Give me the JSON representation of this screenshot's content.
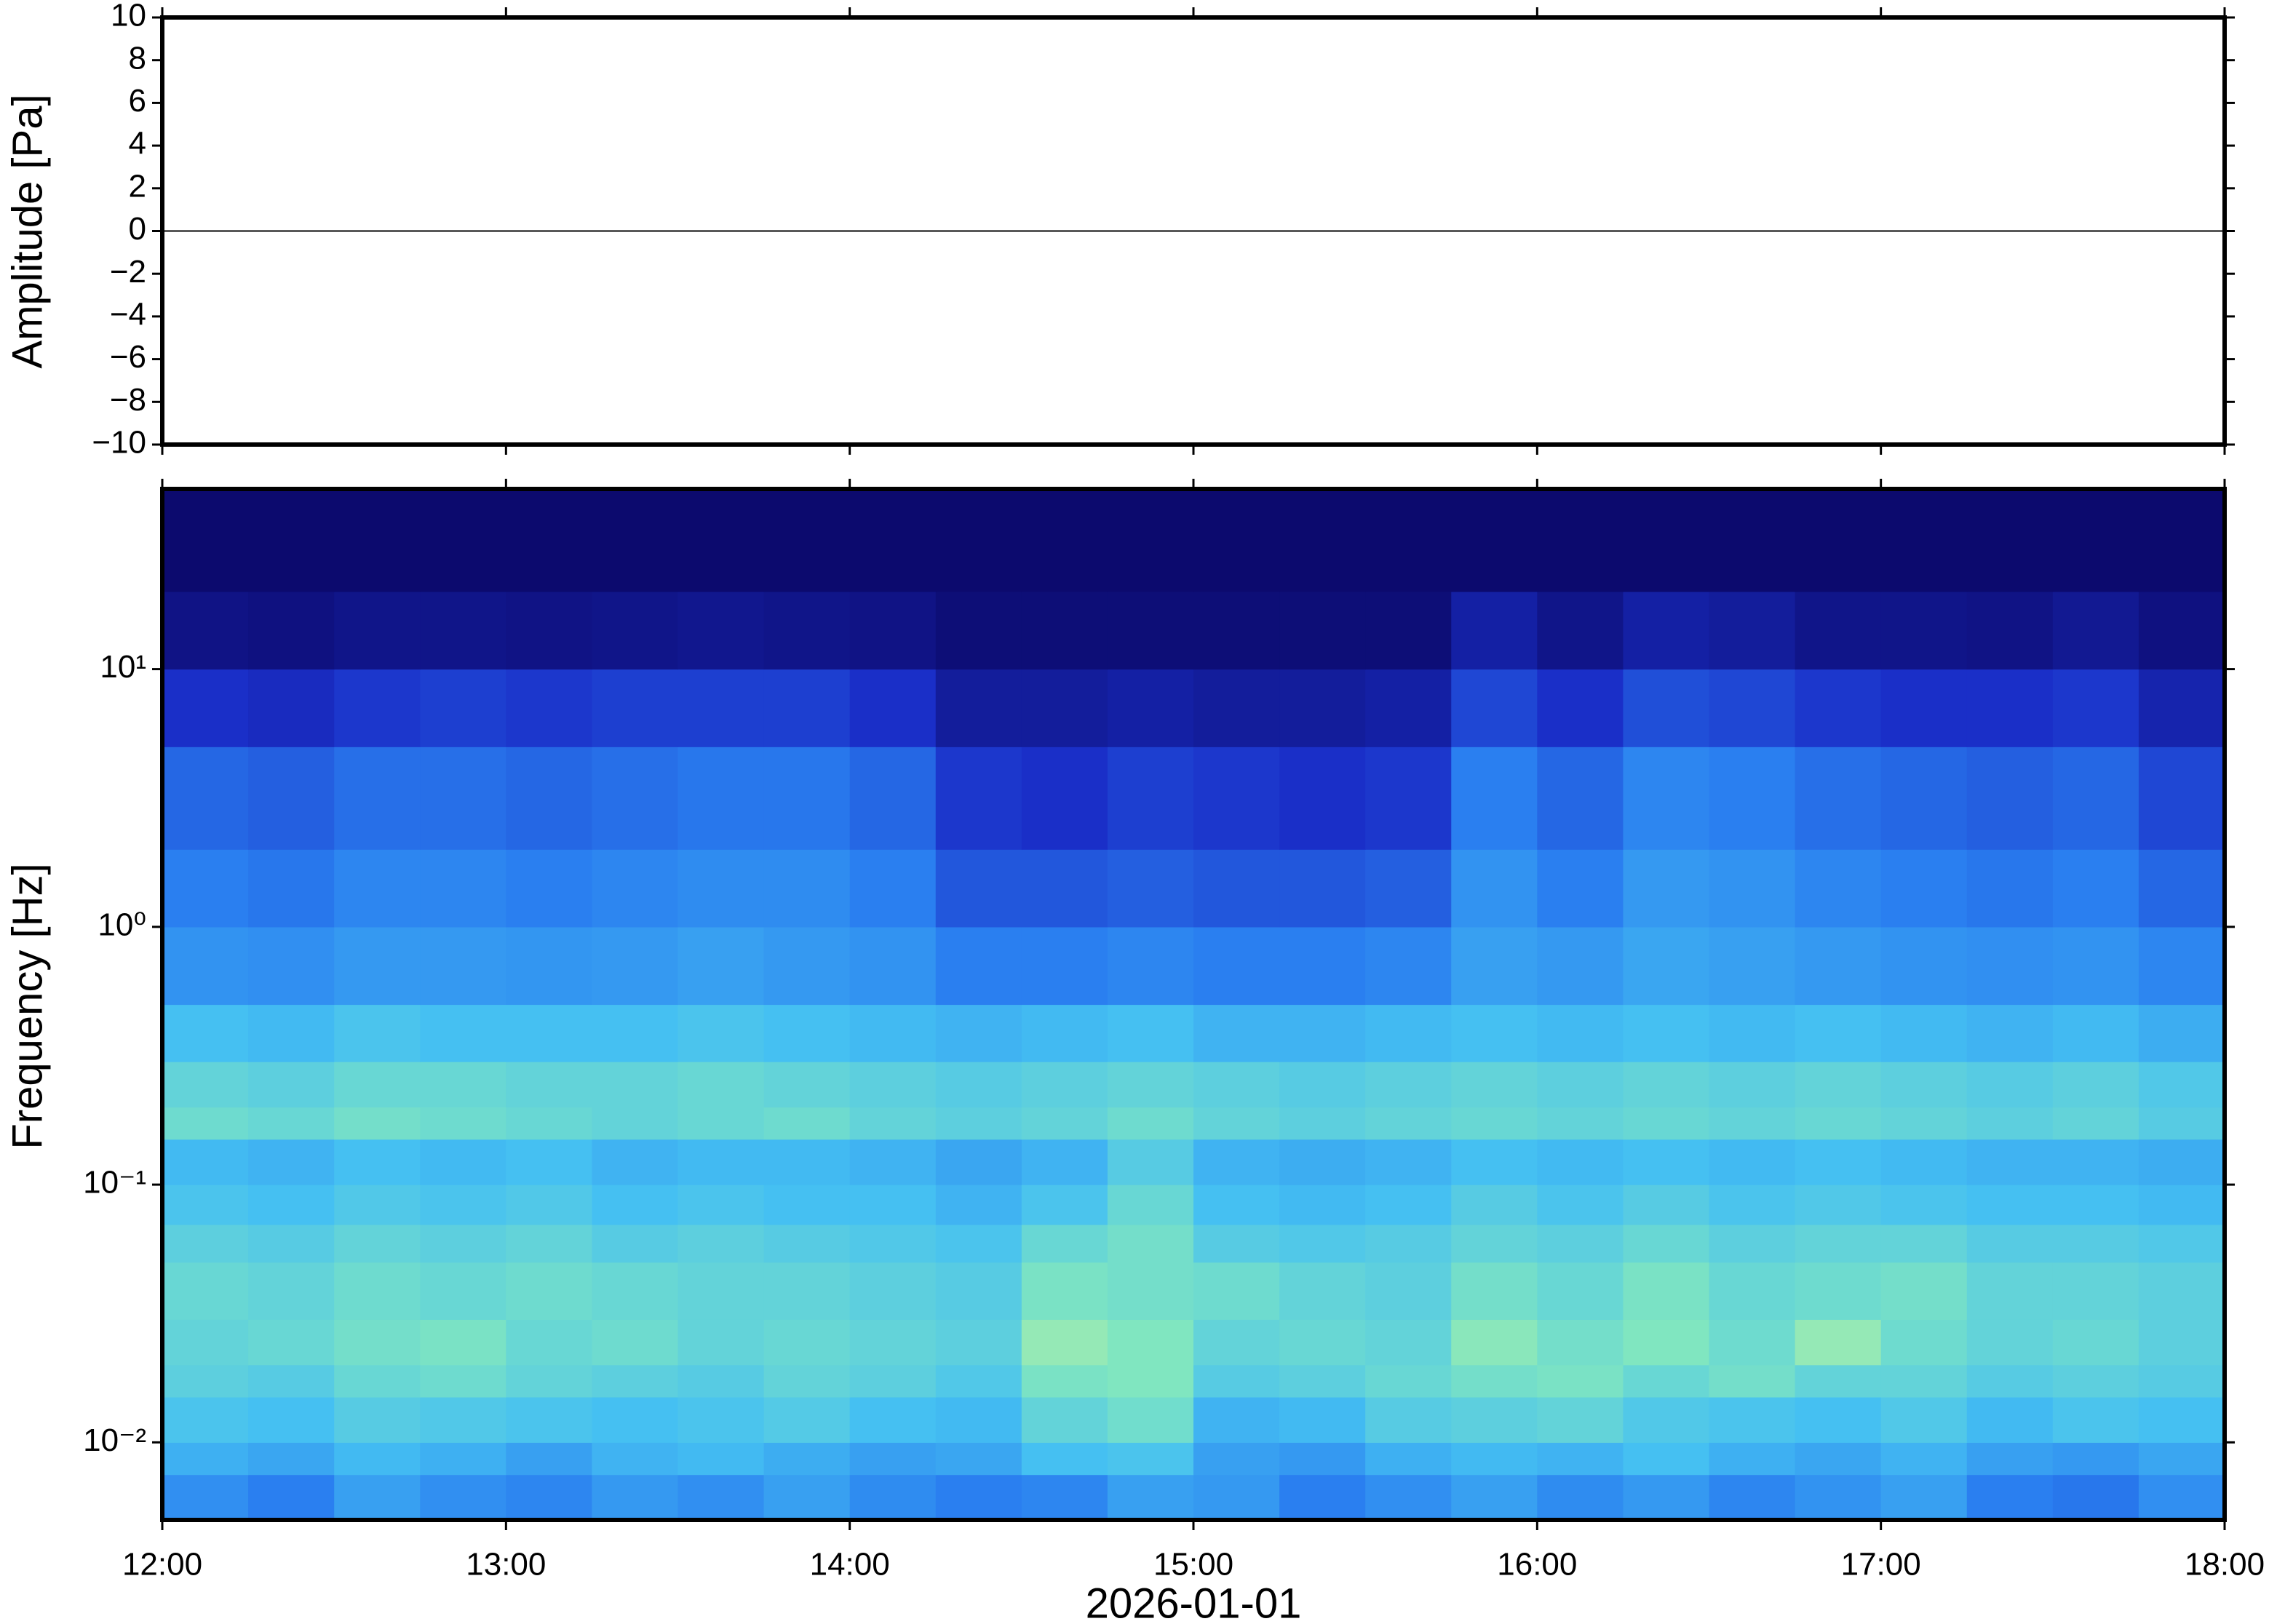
{
  "chart_data": [
    {
      "type": "line",
      "ylabel": "Amplitude [Pa]",
      "ylim": [
        -10,
        10
      ],
      "yticks": [
        {
          "value": -10,
          "label": "−10"
        },
        {
          "value": -8,
          "label": "−8"
        },
        {
          "value": -6,
          "label": "−6"
        },
        {
          "value": -4,
          "label": "−4"
        },
        {
          "value": -2,
          "label": "−2"
        },
        0,
        2,
        4,
        6,
        8,
        10
      ],
      "x": [
        12,
        13,
        14,
        15,
        16,
        17,
        18
      ],
      "series": [
        {
          "color": "#000000",
          "values": [
            0,
            0,
            0,
            0,
            0,
            0,
            0
          ]
        }
      ]
    },
    {
      "type": "heatmap",
      "ylabel": "Frequency [Hz]",
      "xlabel": "2026-01-01",
      "xlim": [
        12,
        18
      ],
      "xticks": [
        {
          "value": 12,
          "label": "12:00"
        },
        {
          "value": 13,
          "label": "13:00"
        },
        {
          "value": 14,
          "label": "14:00"
        },
        {
          "value": 15,
          "label": "15:00"
        },
        {
          "value": 16,
          "label": "16:00"
        },
        {
          "value": 17,
          "label": "17:00"
        },
        {
          "value": 18,
          "label": "18:00"
        }
      ],
      "ylog": true,
      "ylim": [
        0.005,
        50
      ],
      "yticks": [
        {
          "value": 0.01,
          "label": "10⁻²"
        },
        {
          "value": 0.1,
          "label": "10⁻¹"
        },
        {
          "value": 1,
          "label": "10⁰"
        },
        {
          "value": 10,
          "label": "10¹"
        }
      ],
      "zlim": [
        0,
        1
      ],
      "colormap": [
        "#0c0a6e",
        "#1a2fc8",
        "#2a7ff0",
        "#45c0f2",
        "#80e6c0",
        "#e8f48e"
      ],
      "x": [
        12,
        12.25,
        12.5,
        12.75,
        13,
        13.25,
        13.5,
        13.75,
        14,
        14.25,
        14.5,
        14.75,
        15,
        15.25,
        15.5,
        15.75,
        16,
        16.25,
        16.5,
        16.75,
        17,
        17.25,
        17.5,
        17.75,
        18
      ],
      "y": [
        0.005,
        0.0075,
        0.01,
        0.015,
        0.02,
        0.03,
        0.05,
        0.07,
        0.1,
        0.15,
        0.2,
        0.3,
        0.5,
        1,
        2,
        5,
        10,
        20,
        50
      ],
      "z": [
        [
          0.45,
          0.4,
          0.5,
          0.45,
          0.42,
          0.48,
          0.45,
          0.5,
          0.44,
          0.4,
          0.42,
          0.5,
          0.48,
          0.4,
          0.45,
          0.5,
          0.44,
          0.48,
          0.42,
          0.46,
          0.5,
          0.4,
          0.38,
          0.45
        ],
        [
          0.55,
          0.52,
          0.58,
          0.55,
          0.5,
          0.56,
          0.58,
          0.54,
          0.5,
          0.52,
          0.6,
          0.62,
          0.5,
          0.48,
          0.55,
          0.58,
          0.56,
          0.6,
          0.55,
          0.52,
          0.56,
          0.5,
          0.48,
          0.52
        ],
        [
          0.62,
          0.6,
          0.66,
          0.64,
          0.62,
          0.6,
          0.62,
          0.65,
          0.6,
          0.58,
          0.7,
          0.75,
          0.56,
          0.58,
          0.66,
          0.68,
          0.7,
          0.64,
          0.62,
          0.6,
          0.64,
          0.58,
          0.62,
          0.6
        ],
        [
          0.68,
          0.66,
          0.72,
          0.74,
          0.7,
          0.68,
          0.66,
          0.7,
          0.68,
          0.64,
          0.78,
          0.8,
          0.66,
          0.68,
          0.72,
          0.76,
          0.78,
          0.72,
          0.76,
          0.7,
          0.7,
          0.66,
          0.68,
          0.66
        ],
        [
          0.7,
          0.72,
          0.76,
          0.78,
          0.72,
          0.74,
          0.7,
          0.72,
          0.7,
          0.68,
          0.84,
          0.8,
          0.7,
          0.72,
          0.7,
          0.82,
          0.76,
          0.8,
          0.74,
          0.84,
          0.74,
          0.7,
          0.72,
          0.68
        ],
        [
          0.72,
          0.7,
          0.74,
          0.72,
          0.74,
          0.72,
          0.7,
          0.7,
          0.68,
          0.66,
          0.78,
          0.76,
          0.74,
          0.7,
          0.68,
          0.76,
          0.72,
          0.78,
          0.72,
          0.74,
          0.76,
          0.7,
          0.7,
          0.68
        ],
        [
          0.68,
          0.66,
          0.7,
          0.68,
          0.7,
          0.66,
          0.68,
          0.66,
          0.64,
          0.62,
          0.72,
          0.76,
          0.66,
          0.64,
          0.66,
          0.7,
          0.68,
          0.72,
          0.68,
          0.7,
          0.7,
          0.66,
          0.66,
          0.64
        ],
        [
          0.62,
          0.6,
          0.64,
          0.62,
          0.64,
          0.6,
          0.62,
          0.6,
          0.6,
          0.56,
          0.62,
          0.72,
          0.6,
          0.58,
          0.6,
          0.66,
          0.62,
          0.66,
          0.62,
          0.64,
          0.62,
          0.6,
          0.6,
          0.58
        ],
        [
          0.58,
          0.56,
          0.6,
          0.58,
          0.6,
          0.56,
          0.58,
          0.58,
          0.56,
          0.52,
          0.56,
          0.66,
          0.56,
          0.54,
          0.56,
          0.6,
          0.58,
          0.6,
          0.58,
          0.6,
          0.58,
          0.56,
          0.56,
          0.54
        ],
        [
          0.74,
          0.72,
          0.76,
          0.74,
          0.72,
          0.7,
          0.72,
          0.74,
          0.7,
          0.68,
          0.7,
          0.74,
          0.7,
          0.68,
          0.7,
          0.72,
          0.7,
          0.72,
          0.7,
          0.72,
          0.7,
          0.68,
          0.7,
          0.66
        ],
        [
          0.7,
          0.68,
          0.72,
          0.72,
          0.7,
          0.7,
          0.72,
          0.7,
          0.68,
          0.66,
          0.68,
          0.7,
          0.68,
          0.66,
          0.68,
          0.7,
          0.68,
          0.7,
          0.68,
          0.7,
          0.68,
          0.66,
          0.68,
          0.64
        ],
        [
          0.6,
          0.58,
          0.62,
          0.6,
          0.6,
          0.6,
          0.62,
          0.6,
          0.58,
          0.56,
          0.58,
          0.6,
          0.56,
          0.56,
          0.58,
          0.6,
          0.58,
          0.6,
          0.58,
          0.6,
          0.58,
          0.56,
          0.58,
          0.54
        ],
        [
          0.46,
          0.45,
          0.48,
          0.48,
          0.47,
          0.48,
          0.5,
          0.48,
          0.46,
          0.4,
          0.4,
          0.42,
          0.4,
          0.4,
          0.42,
          0.5,
          0.48,
          0.52,
          0.5,
          0.48,
          0.46,
          0.45,
          0.46,
          0.42
        ],
        [
          0.4,
          0.38,
          0.42,
          0.42,
          0.4,
          0.42,
          0.44,
          0.44,
          0.4,
          0.3,
          0.3,
          0.32,
          0.3,
          0.3,
          0.32,
          0.46,
          0.4,
          0.48,
          0.46,
          0.42,
          0.4,
          0.38,
          0.4,
          0.34
        ],
        [
          0.34,
          0.32,
          0.36,
          0.36,
          0.34,
          0.36,
          0.38,
          0.38,
          0.34,
          0.22,
          0.2,
          0.24,
          0.22,
          0.2,
          0.22,
          0.4,
          0.34,
          0.42,
          0.4,
          0.36,
          0.34,
          0.32,
          0.34,
          0.26
        ],
        [
          0.2,
          0.18,
          0.22,
          0.24,
          0.22,
          0.24,
          0.24,
          0.24,
          0.2,
          0.1,
          0.1,
          0.12,
          0.1,
          0.1,
          0.12,
          0.26,
          0.2,
          0.28,
          0.26,
          0.22,
          0.2,
          0.2,
          0.22,
          0.14
        ],
        [
          0.05,
          0.04,
          0.06,
          0.06,
          0.05,
          0.06,
          0.07,
          0.06,
          0.05,
          0.02,
          0.02,
          0.02,
          0.02,
          0.02,
          0.02,
          0.12,
          0.06,
          0.12,
          0.1,
          0.06,
          0.06,
          0.05,
          0.08,
          0.04
        ],
        [
          0,
          0,
          0,
          0,
          0,
          0,
          0,
          0,
          0,
          0,
          0,
          0,
          0,
          0,
          0,
          0,
          0,
          0,
          0,
          0,
          0,
          0,
          0,
          0
        ]
      ]
    }
  ]
}
